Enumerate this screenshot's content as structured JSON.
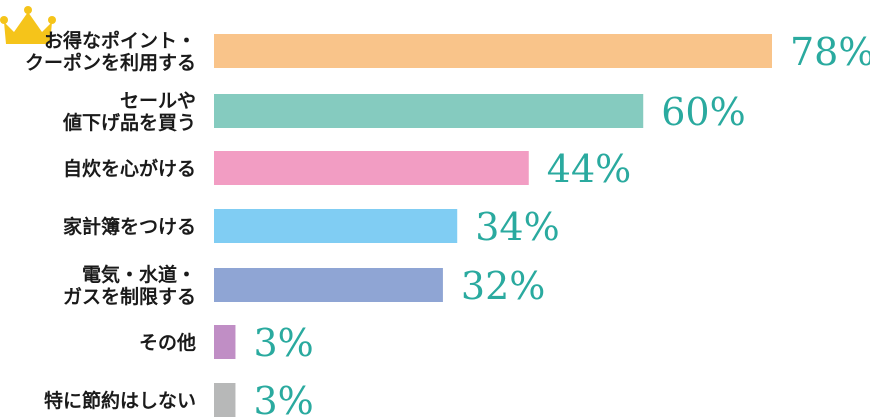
{
  "chart_data": {
    "type": "bar",
    "orientation": "horizontal",
    "categories": [
      [
        "お得なポイント・",
        "クーポンを利用する"
      ],
      [
        "セールや",
        "値下げ品を買う"
      ],
      [
        "自炊を心がける"
      ],
      [
        "家計簿をつける"
      ],
      [
        "電気・水道・",
        "ガスを制限する"
      ],
      [
        "その他"
      ],
      [
        "特に節約はしない"
      ]
    ],
    "values": [
      78,
      60,
      44,
      34,
      32,
      3,
      3
    ],
    "value_labels": [
      "78%",
      "60%",
      "44%",
      "34%",
      "32%",
      "3%",
      "3%"
    ],
    "colors": [
      "#f9c48a",
      "#85cbbf",
      "#f29dc3",
      "#80cdf3",
      "#8fa5d4",
      "#c08ec5",
      "#b7b8b8"
    ],
    "label_color": "#2aaa9f",
    "top_rank_icon": "crown-icon",
    "crown_color": "#f5c41a",
    "xlim": [
      0,
      78
    ],
    "grid": false,
    "legend": "none"
  }
}
